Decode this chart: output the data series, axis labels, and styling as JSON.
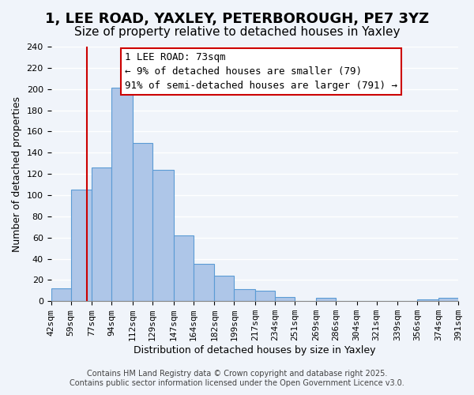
{
  "title": "1, LEE ROAD, YAXLEY, PETERBOROUGH, PE7 3YZ",
  "subtitle": "Size of property relative to detached houses in Yaxley",
  "xlabel": "Distribution of detached houses by size in Yaxley",
  "ylabel": "Number of detached properties",
  "bin_labels": [
    "42sqm",
    "59sqm",
    "77sqm",
    "94sqm",
    "112sqm",
    "129sqm",
    "147sqm",
    "164sqm",
    "182sqm",
    "199sqm",
    "217sqm",
    "234sqm",
    "251sqm",
    "269sqm",
    "286sqm",
    "304sqm",
    "321sqm",
    "339sqm",
    "356sqm",
    "374sqm",
    "391sqm"
  ],
  "bin_edges": [
    42,
    59,
    77,
    94,
    112,
    129,
    147,
    164,
    182,
    199,
    217,
    234,
    251,
    269,
    286,
    304,
    321,
    339,
    356,
    374,
    391
  ],
  "counts": [
    12,
    105,
    126,
    201,
    149,
    124,
    62,
    35,
    24,
    11,
    10,
    4,
    0,
    3,
    0,
    0,
    0,
    0,
    2,
    3
  ],
  "bar_color": "#aec6e8",
  "bar_edge_color": "#5b9bd5",
  "vline_x": 73,
  "vline_color": "#cc0000",
  "ylim": [
    0,
    240
  ],
  "yticks": [
    0,
    20,
    40,
    60,
    80,
    100,
    120,
    140,
    160,
    180,
    200,
    220,
    240
  ],
  "annotation_title": "1 LEE ROAD: 73sqm",
  "annotation_line1": "← 9% of detached houses are smaller (79)",
  "annotation_line2": "91% of semi-detached houses are larger (791) →",
  "footer_line1": "Contains HM Land Registry data © Crown copyright and database right 2025.",
  "footer_line2": "Contains public sector information licensed under the Open Government Licence v3.0.",
  "background_color": "#f0f4fa",
  "grid_color": "#ffffff",
  "title_fontsize": 13,
  "subtitle_fontsize": 11,
  "axis_label_fontsize": 9,
  "tick_fontsize": 8,
  "annotation_fontsize": 9,
  "footer_fontsize": 7
}
